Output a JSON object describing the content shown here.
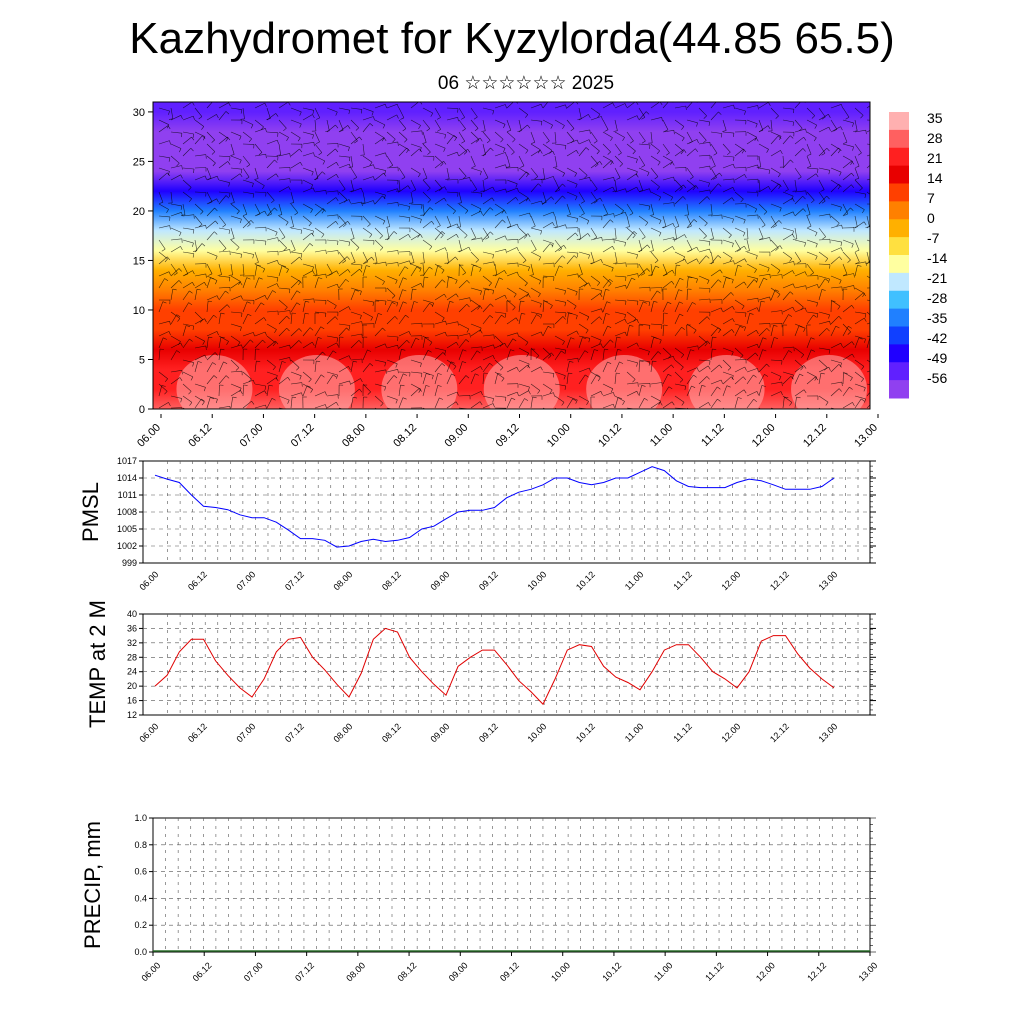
{
  "title": "Kazhydromet for Kyzylorda(44.85 65.5)",
  "subtitle": "06 ☆☆☆☆☆☆ 2025",
  "colors": {
    "pmsl_line": "#0000ff",
    "temp_line": "#e00000",
    "grid": "#555555",
    "colorbar": [
      "#ffb0b0",
      "#ff6060",
      "#ff2020",
      "#e80000",
      "#ff4000",
      "#ff8000",
      "#ffb000",
      "#ffe040",
      "#ffffa0",
      "#c0e8ff",
      "#40c0ff",
      "#2080ff",
      "#1040ff",
      "#2000ff",
      "#6020ff",
      "#9040f0"
    ]
  },
  "x_ticks": [
    "06.00",
    "06.12",
    "07.00",
    "07.12",
    "08.00",
    "08.12",
    "09.00",
    "09.12",
    "10.00",
    "10.12",
    "11.00",
    "11.12",
    "12.00",
    "12.12",
    "13.00"
  ],
  "chart_data": [
    {
      "type": "heatmap",
      "name_hint": "vertical temperature cross-section with wind barbs",
      "title": "",
      "xlabel": "",
      "ylabel": "",
      "ylim": [
        0,
        31
      ],
      "yticks": [
        0,
        5,
        10,
        15,
        20,
        25,
        30
      ],
      "ytick_labels": [
        "0",
        "5",
        "10",
        "15",
        "20",
        "25",
        "30"
      ],
      "colorbar_labels": [
        "35",
        "28",
        "21",
        "14",
        "7",
        "0",
        "-7",
        "-14",
        "-21",
        "-28",
        "-35",
        "-42",
        "-49",
        "-56"
      ],
      "colorbar_range": [
        -60,
        38
      ],
      "levels": [
        0,
        2,
        4,
        6,
        8,
        10,
        12,
        14,
        16,
        18,
        20,
        22,
        24,
        26,
        28,
        30
      ],
      "level_temperatures": [
        28,
        25,
        20,
        16,
        12,
        8,
        2,
        -4,
        -12,
        -22,
        -32,
        -44,
        -56,
        -58,
        -54,
        -50
      ],
      "grid": true
    },
    {
      "type": "line",
      "ylabel": "PMSL",
      "ylim": [
        999,
        1017
      ],
      "yticks": [
        999,
        1002,
        1005,
        1008,
        1011,
        1014,
        1017
      ],
      "ytick_labels": [
        "999",
        "1002",
        "1005",
        "1008",
        "1011",
        "1014",
        "1017"
      ],
      "x": [
        0,
        3,
        6,
        9,
        12,
        15,
        18,
        21,
        24,
        27,
        30,
        33,
        36,
        39,
        42,
        45,
        48,
        51,
        54,
        57,
        60,
        63,
        66,
        69,
        72,
        75,
        78,
        81,
        84,
        87,
        90,
        93,
        96,
        99,
        102,
        105,
        108,
        111,
        114,
        117,
        120,
        123,
        126,
        129,
        132,
        135,
        138,
        141,
        144,
        147,
        150,
        153,
        156,
        159,
        162,
        165,
        168
      ],
      "values": [
        1014.5,
        1013.8,
        1013.2,
        1011.0,
        1009.0,
        1008.8,
        1008.4,
        1007.5,
        1007.0,
        1007.0,
        1006.2,
        1004.8,
        1003.3,
        1003.3,
        1003.0,
        1001.8,
        1002.0,
        1002.8,
        1003.2,
        1002.8,
        1003.0,
        1003.5,
        1005.0,
        1005.5,
        1006.8,
        1008.0,
        1008.3,
        1008.3,
        1008.8,
        1010.5,
        1011.5,
        1012.0,
        1012.8,
        1014.0,
        1014.0,
        1013.2,
        1012.8,
        1013.2,
        1014.0,
        1014.0,
        1015.0,
        1016.0,
        1015.3,
        1013.5,
        1012.5,
        1012.3,
        1012.3,
        1012.3,
        1013.2,
        1013.8,
        1013.5,
        1012.8,
        1012.0,
        1012.0,
        1012.0,
        1012.5,
        1014.0
      ],
      "grid": true
    },
    {
      "type": "line",
      "ylabel": "TEMP at 2 M",
      "ylim": [
        12,
        40
      ],
      "yticks": [
        12,
        16,
        20,
        24,
        28,
        32,
        36,
        40
      ],
      "ytick_labels": [
        "12",
        "16",
        "20",
        "24",
        "28",
        "32",
        "36",
        "40"
      ],
      "x": [
        0,
        3,
        6,
        9,
        12,
        15,
        18,
        21,
        24,
        27,
        30,
        33,
        36,
        39,
        42,
        45,
        48,
        51,
        54,
        57,
        60,
        63,
        66,
        69,
        72,
        75,
        78,
        81,
        84,
        87,
        90,
        93,
        96,
        99,
        102,
        105,
        108,
        111,
        114,
        117,
        120,
        123,
        126,
        129,
        132,
        135,
        138,
        141,
        144,
        147,
        150,
        153,
        156,
        159,
        162,
        165,
        168
      ],
      "values": [
        20,
        23,
        29.5,
        33,
        33,
        27,
        23,
        19.5,
        17,
        22,
        29.5,
        33,
        33.5,
        28,
        24.5,
        20.5,
        17,
        23.5,
        33,
        36,
        35,
        28,
        24,
        20.5,
        17.5,
        25.5,
        28,
        30,
        30,
        26,
        21.5,
        18.5,
        15,
        22,
        30,
        31.5,
        31,
        25.5,
        22.5,
        21,
        19,
        24,
        30,
        31.5,
        31.5,
        28,
        24,
        22,
        19.5,
        24,
        32.5,
        34,
        34,
        29,
        25,
        22,
        19.5
      ],
      "grid": true
    },
    {
      "type": "bar",
      "ylabel": "PRECIP, mm",
      "ylim": [
        0.0,
        1.0
      ],
      "yticks": [
        0.0,
        0.2,
        0.4,
        0.6,
        0.8,
        1.0
      ],
      "ytick_labels": [
        "0.0",
        "0.2",
        "0.4",
        "0.6",
        "0.8",
        "1.0"
      ],
      "values": [
        0,
        0,
        0,
        0,
        0,
        0,
        0,
        0,
        0,
        0,
        0,
        0,
        0,
        0,
        0,
        0,
        0,
        0,
        0,
        0,
        0,
        0,
        0,
        0,
        0,
        0,
        0,
        0,
        0,
        0,
        0,
        0,
        0,
        0,
        0,
        0,
        0,
        0,
        0,
        0,
        0,
        0,
        0,
        0,
        0,
        0,
        0,
        0,
        0,
        0,
        0,
        0,
        0,
        0,
        0,
        0,
        0
      ],
      "grid": true
    }
  ]
}
